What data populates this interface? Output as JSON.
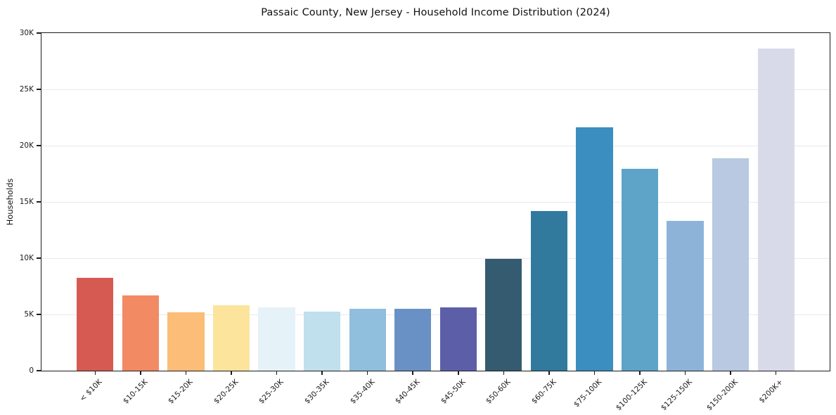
{
  "chart_data": {
    "type": "bar",
    "title": "Passaic County, New Jersey - Household Income Distribution (2024)",
    "xlabel": "",
    "ylabel": "Households",
    "categories": [
      "< $10K",
      "$10-15K",
      "$15-20K",
      "$20-25K",
      "$25-30K",
      "$30-35K",
      "$35-40K",
      "$40-45K",
      "$45-50K",
      "$50-60K",
      "$60-75K",
      "$75-100K",
      "$100-125K",
      "$125-150K",
      "$150-200K",
      "$200K+"
    ],
    "values": [
      8250,
      6700,
      5200,
      5800,
      5650,
      5250,
      5500,
      5500,
      5650,
      9950,
      14200,
      21650,
      17950,
      13300,
      18850,
      28650
    ],
    "bar_colors": [
      "#d65a52",
      "#f28a64",
      "#fbbd78",
      "#fde49d",
      "#e5f2f8",
      "#c0e0ed",
      "#90bedd",
      "#6991c5",
      "#5c5fa8",
      "#355b70",
      "#32799e",
      "#3a8ec0",
      "#5da4c8",
      "#8db4d8",
      "#b8c9e1",
      "#d8daea"
    ],
    "ylim": [
      0,
      30000
    ],
    "yticks": [
      {
        "value": 0,
        "label": "0"
      },
      {
        "value": 5000,
        "label": "5K"
      },
      {
        "value": 10000,
        "label": "10K"
      },
      {
        "value": 15000,
        "label": "15K"
      },
      {
        "value": 20000,
        "label": "20K"
      },
      {
        "value": 25000,
        "label": "25K"
      },
      {
        "value": 30000,
        "label": "30K"
      }
    ],
    "grid": "horizontal",
    "grid_color": "#e9e9ec",
    "axis_color": "#1c1c1c",
    "legend": "none",
    "background": "#ffffff"
  }
}
